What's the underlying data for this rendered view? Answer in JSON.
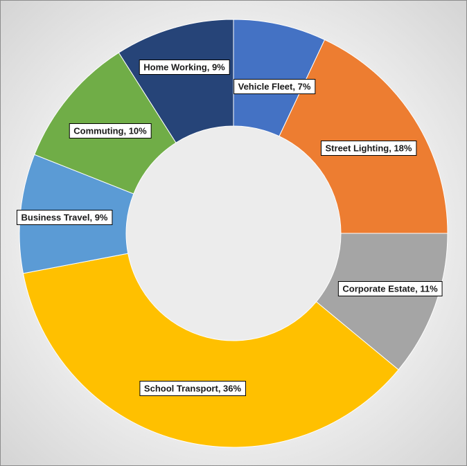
{
  "chart_data": {
    "type": "pie",
    "variant": "doughnut",
    "legend": "none",
    "categories": [
      "Vehicle Fleet",
      "Street Lighting",
      "Corporate Estate",
      "School Transport",
      "Business Travel",
      "Commuting",
      "Home Working"
    ],
    "values": [
      7,
      18,
      11,
      36,
      9,
      10,
      9
    ],
    "data_labels": [
      "Vehicle Fleet, 7%",
      "Street Lighting, 18%",
      "Corporate Estate, 11%",
      "School Transport, 36%",
      "Business Travel, 9%",
      "Commuting, 10%",
      "Home Working, 9%"
    ],
    "colors": [
      "#4472C4",
      "#ED7D31",
      "#A5A5A5",
      "#FFC000",
      "#5B9BD5",
      "#70AD47",
      "#264478"
    ]
  }
}
